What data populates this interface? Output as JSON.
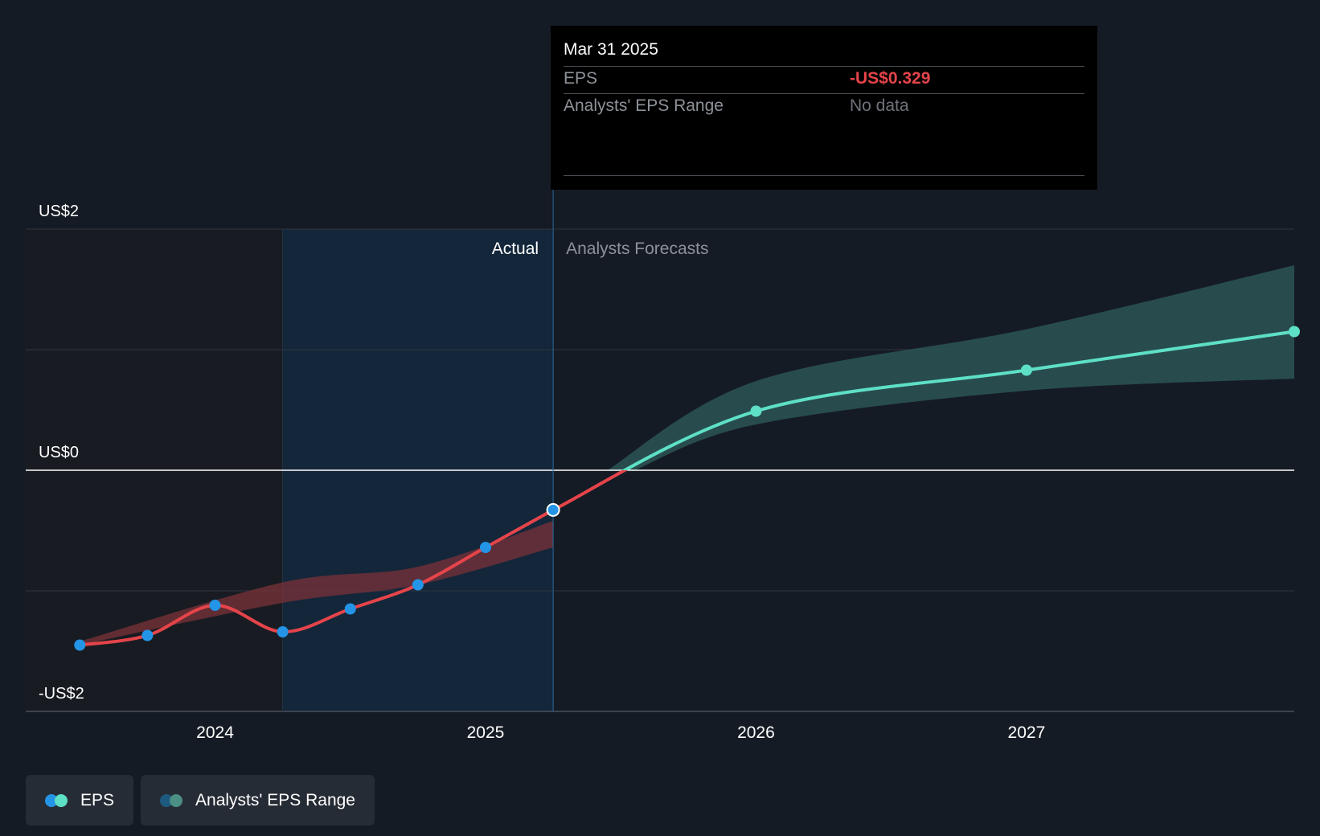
{
  "chart_data": {
    "type": "line",
    "title": "",
    "y_ticks": [
      {
        "value": 2,
        "label": "US$2"
      },
      {
        "value": 0,
        "label": "US$0"
      },
      {
        "value": -2,
        "label": "-US$2"
      }
    ],
    "ylim": [
      -2,
      2
    ],
    "x_ticks": [
      {
        "value": 2024,
        "label": "2024"
      },
      {
        "value": 2025,
        "label": "2025"
      },
      {
        "value": 2026,
        "label": "2026"
      },
      {
        "value": 2027,
        "label": "2027"
      }
    ],
    "xlim": [
      2023.3,
      2027.99
    ],
    "grid": true,
    "section_labels": {
      "actual": "Actual",
      "forecast": "Analysts Forecasts"
    },
    "past_shade_start": 2024.25,
    "divider_date": 2025.25,
    "series": [
      {
        "name": "EPS",
        "segment": "actual",
        "points": [
          {
            "x": 2023.5,
            "y": -1.45
          },
          {
            "x": 2023.75,
            "y": -1.37
          },
          {
            "x": 2024.0,
            "y": -1.12
          },
          {
            "x": 2024.25,
            "y": -1.34
          },
          {
            "x": 2024.5,
            "y": -1.15
          },
          {
            "x": 2024.75,
            "y": -0.95
          },
          {
            "x": 2025.0,
            "y": -0.64
          },
          {
            "x": 2025.25,
            "y": -0.329
          }
        ]
      },
      {
        "name": "EPS",
        "segment": "forecast",
        "points": [
          {
            "x": 2025.25,
            "y": -0.329
          },
          {
            "x": 2026.0,
            "y": 0.49
          },
          {
            "x": 2027.0,
            "y": 0.83
          },
          {
            "x": 2027.99,
            "y": 1.15
          }
        ]
      }
    ],
    "range_bands": [
      {
        "name": "Analysts' EPS Range",
        "segment": "actual",
        "upper": [
          [
            2023.5,
            -1.42
          ],
          [
            2024.25,
            -0.93
          ],
          [
            2024.75,
            -0.8
          ],
          [
            2025.25,
            -0.42
          ]
        ],
        "lower": [
          [
            2023.5,
            -1.45
          ],
          [
            2024.25,
            -1.1
          ],
          [
            2024.75,
            -0.95
          ],
          [
            2025.25,
            -0.64
          ]
        ]
      },
      {
        "name": "Analysts' EPS Range",
        "segment": "forecast",
        "upper": [
          [
            2025.45,
            0.0
          ],
          [
            2026.0,
            0.74
          ],
          [
            2027.0,
            1.17
          ],
          [
            2027.99,
            1.7
          ]
        ],
        "lower": [
          [
            2025.55,
            0.0
          ],
          [
            2026.0,
            0.38
          ],
          [
            2027.0,
            0.66
          ],
          [
            2027.99,
            0.76
          ]
        ]
      }
    ],
    "highlight_point": {
      "x": 2025.25,
      "y": -0.329
    }
  },
  "tooltip": {
    "date": "Mar 31 2025",
    "rows": [
      {
        "label": "EPS",
        "value": "-US$0.329"
      },
      {
        "label": "Analysts' EPS Range",
        "value": "No data"
      }
    ]
  },
  "legend": {
    "items": [
      {
        "label": "EPS"
      },
      {
        "label": "Analysts' EPS Range"
      }
    ]
  },
  "colors": {
    "background": "#151b24",
    "eps_actual": "#e5444a",
    "eps_forecast": "#5ee0c6",
    "point_actual": "#2394e6",
    "range_actual": "#7a3238",
    "range_forecast": "#2b5556",
    "negative_value": "#e5444a",
    "muted_text": "#8e9299"
  }
}
